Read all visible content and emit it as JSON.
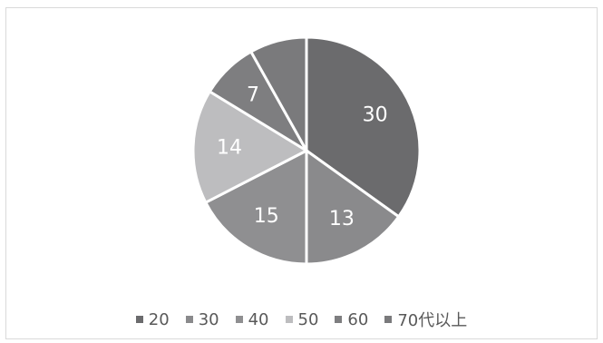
{
  "chart_data": {
    "type": "pie",
    "title": "",
    "categories": [
      "20",
      "30",
      "40",
      "50",
      "60",
      "70代以上"
    ],
    "values": [
      30,
      13,
      15,
      14,
      7,
      7
    ],
    "data_labels": [
      "30",
      "13",
      "15",
      "14",
      "7",
      ""
    ],
    "colors": [
      "#6b6b6d",
      "#8a8a8c",
      "#8f8f91",
      "#bdbdbf",
      "#7e7e80",
      "#7a7a7c"
    ],
    "start_angle_deg": 0,
    "direction": "clockwise",
    "legend_position": "bottom"
  }
}
